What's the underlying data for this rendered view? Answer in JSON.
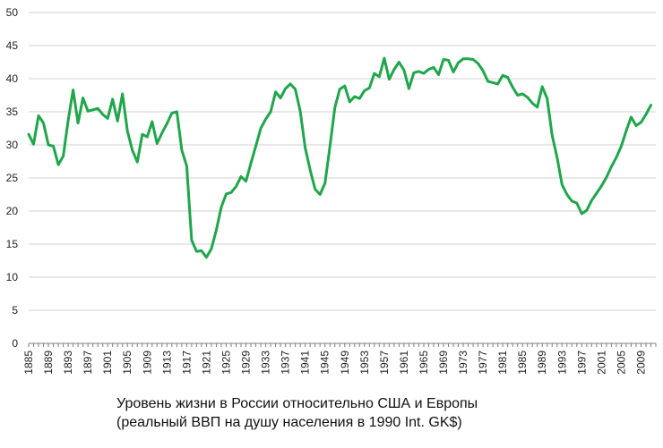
{
  "caption": {
    "line1": "Уровень жизни в России относительно США и Европы",
    "line2": "(реальный ВВП на душу населения в 1990 Int. GK$)"
  },
  "chart_data": {
    "type": "line",
    "title": "Уровень жизни в России относительно США и Европы (реальный ВВП на душу населения в 1990 Int. GK$)",
    "xlabel": "",
    "ylabel": "",
    "ylim": [
      0,
      50
    ],
    "yticks": [
      0,
      5,
      10,
      15,
      20,
      25,
      30,
      35,
      40,
      45,
      50
    ],
    "xlim": [
      1885,
      2012
    ],
    "xticks": [
      "1885",
      "1889",
      "1893",
      "1897",
      "1901",
      "1905",
      "1909",
      "1913",
      "1917",
      "1921",
      "1925",
      "1929",
      "1933",
      "1937",
      "1941",
      "1945",
      "1949",
      "1953",
      "1957",
      "1961",
      "1965",
      "1969",
      "1973",
      "1977",
      "1981",
      "1985",
      "1989",
      "1993",
      "1997",
      "2001",
      "2005",
      "2009"
    ],
    "grid": "horizontal",
    "line_color": "#1fa64b",
    "series": [
      {
        "x": [
          1885,
          1886,
          1887,
          1888,
          1889,
          1890,
          1891,
          1892,
          1893,
          1894,
          1895,
          1896,
          1897,
          1898,
          1899,
          1900,
          1901,
          1902,
          1903,
          1904,
          1905,
          1906,
          1907,
          1908,
          1909,
          1910,
          1911,
          1912,
          1913,
          1914,
          1915,
          1916,
          1917,
          1918,
          1919,
          1920,
          1921,
          1922,
          1923,
          1924,
          1925,
          1926,
          1927,
          1928,
          1929,
          1930,
          1931,
          1932,
          1933,
          1934,
          1935,
          1936,
          1937,
          1938,
          1939,
          1940,
          1941,
          1942,
          1943,
          1944,
          1945,
          1946,
          1947,
          1948,
          1949,
          1950,
          1951,
          1952,
          1953,
          1954,
          1955,
          1956,
          1957,
          1958,
          1959,
          1960,
          1961,
          1962,
          1963,
          1964,
          1965,
          1966,
          1967,
          1968,
          1969,
          1970,
          1971,
          1972,
          1973,
          1974,
          1975,
          1976,
          1977,
          1978,
          1979,
          1980,
          1981,
          1982,
          1983,
          1984,
          1985,
          1986,
          1987,
          1988,
          1989,
          1990,
          1991,
          1992,
          1993,
          1994,
          1995,
          1996,
          1997,
          1998,
          1999,
          2000,
          2001,
          2002,
          2003,
          2004,
          2005,
          2006,
          2007,
          2008,
          2009,
          2010,
          2011
        ],
        "values": [
          31.6,
          30.1,
          34.4,
          33.3,
          30.0,
          29.8,
          27.0,
          28.3,
          33.7,
          38.3,
          33.3,
          37.1,
          35.1,
          35.3,
          35.5,
          34.6,
          34.0,
          36.9,
          33.6,
          37.7,
          32.1,
          29.2,
          27.4,
          31.6,
          31.2,
          33.5,
          30.2,
          31.8,
          33.2,
          34.8,
          35.0,
          29.2,
          26.8,
          15.6,
          13.9,
          14.0,
          13.0,
          14.3,
          17.1,
          20.6,
          22.6,
          22.8,
          23.7,
          25.2,
          24.5,
          27.2,
          29.8,
          32.5,
          33.9,
          35.0,
          38.0,
          37.1,
          38.5,
          39.2,
          38.4,
          35.1,
          29.5,
          26.2,
          23.3,
          22.5,
          24.2,
          29.7,
          35.6,
          38.4,
          38.9,
          36.5,
          37.3,
          37.0,
          38.2,
          38.6,
          40.8,
          40.3,
          43.1,
          39.9,
          41.4,
          42.5,
          41.3,
          38.5,
          40.9,
          41.1,
          40.8,
          41.4,
          41.7,
          40.6,
          42.9,
          42.8,
          41.0,
          42.4,
          43.0,
          43.0,
          42.9,
          42.3,
          41.2,
          39.6,
          39.4,
          39.2,
          40.5,
          40.2,
          38.7,
          37.5,
          37.7,
          37.2,
          36.3,
          35.7,
          38.8,
          37.0,
          31.4,
          28.1,
          24.0,
          22.5,
          21.5,
          21.2,
          19.6,
          20.1,
          21.6,
          22.7,
          23.8,
          25.1,
          26.7,
          28.1,
          29.8,
          32.1,
          34.2,
          32.9,
          33.4,
          34.6,
          36.0
        ]
      }
    ]
  }
}
